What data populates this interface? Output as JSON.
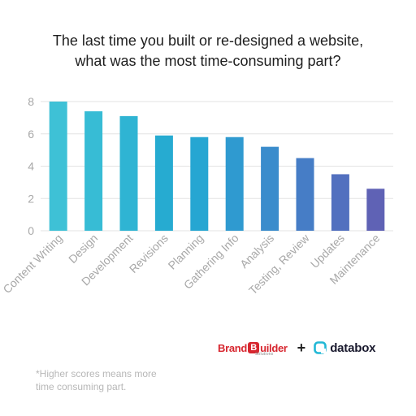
{
  "title_line1": "The last time you built or re-designed a website,",
  "title_line2": "what was the most time-consuming part?",
  "footnote_line1": "*Higher scores means more",
  "footnote_line2": "time consuming part.",
  "logos": {
    "brand_pre": "Brand",
    "brand_b": "B",
    "brand_post": "uilder",
    "brand_sub": "Solutions",
    "plus": "+",
    "databox": "databox"
  },
  "colors": {
    "grid": "#e3e3e3",
    "axis_text": "#a8a8a8",
    "bars": [
      "#3ec1d6",
      "#37bcd5",
      "#2fb4d3",
      "#26abd1",
      "#26a6d2",
      "#2f9ad0",
      "#3a8ccc",
      "#467dc6",
      "#5270bf",
      "#5f62b5"
    ]
  },
  "chart_data": {
    "type": "bar",
    "title": "The last time you built or re-designed a website, what was the most time-consuming part?",
    "categories": [
      "Content Writing",
      "Design",
      "Development",
      "Revisions",
      "Planning",
      "Gathering Info",
      "Analysis",
      "Testing, Review",
      "Updates",
      "Maintenance"
    ],
    "values": [
      8.0,
      7.4,
      7.1,
      5.9,
      5.8,
      5.8,
      5.2,
      4.5,
      3.5,
      2.6
    ],
    "ylim": [
      0,
      8
    ],
    "yticks": [
      0,
      2,
      4,
      6,
      8
    ],
    "grid": true,
    "xlabel": "",
    "ylabel": ""
  }
}
